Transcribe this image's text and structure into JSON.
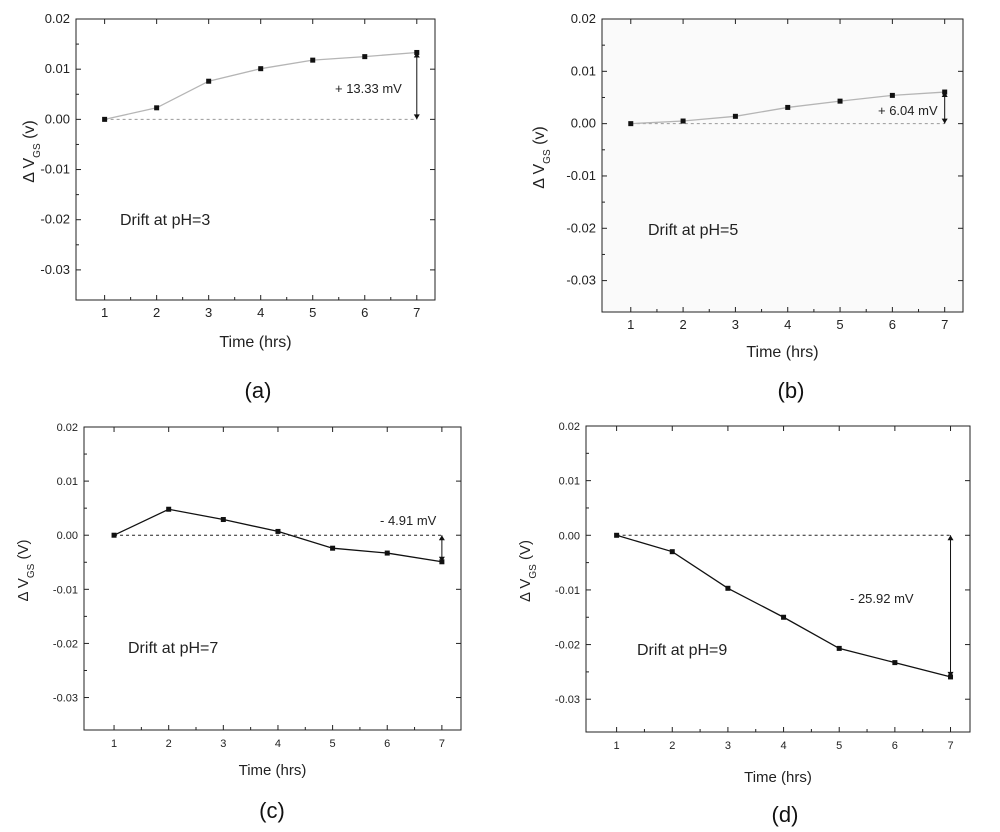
{
  "chart_data": [
    {
      "type": "line",
      "panel_label": "(a)",
      "title": "",
      "xlabel": "Time (hrs)",
      "ylabel_prefix": "Δ V",
      "ylabel_sub": "GS",
      "ylabel_suffix": " (v)",
      "x": [
        1,
        2,
        3,
        4,
        5,
        6,
        7
      ],
      "xticks": [
        "1",
        "2",
        "3",
        "4",
        "5",
        "6",
        "7"
      ],
      "xlim": [
        0.45,
        7.35
      ],
      "ylim": [
        -0.036,
        0.02
      ],
      "yticks": [
        "0.02",
        "0.01",
        "0.00",
        "-0.01",
        "-0.02",
        "-0.03"
      ],
      "ytick_values": [
        0.02,
        0.01,
        0.0,
        -0.01,
        -0.02,
        -0.03
      ],
      "series": [
        {
          "name": "drift",
          "values": [
            0.0,
            0.0023,
            0.0076,
            0.0101,
            0.0118,
            0.0125,
            0.01333
          ]
        }
      ],
      "drift_text": "Drift at pH=3",
      "delta_text": "+ 13.33 mV",
      "line_color": "#b5b5b5",
      "baseline_color": "#9a9a9a"
    },
    {
      "type": "line",
      "panel_label": "(b)",
      "title": "",
      "xlabel": "Time (hrs)",
      "ylabel_prefix": "Δ V",
      "ylabel_sub": "GS",
      "ylabel_suffix": " (v)",
      "x": [
        1,
        2,
        3,
        4,
        5,
        6,
        7
      ],
      "xticks": [
        "1",
        "2",
        "3",
        "4",
        "5",
        "6",
        "7"
      ],
      "xlim": [
        0.45,
        7.35
      ],
      "ylim": [
        -0.036,
        0.02
      ],
      "yticks": [
        "0.02",
        "0.01",
        "0.00",
        "-0.01",
        "-0.02",
        "-0.03"
      ],
      "ytick_values": [
        0.02,
        0.01,
        0.0,
        -0.01,
        -0.02,
        -0.03
      ],
      "series": [
        {
          "name": "drift",
          "values": [
            0.0,
            0.0005,
            0.0014,
            0.0031,
            0.0043,
            0.0054,
            0.00604
          ]
        }
      ],
      "drift_text": "Drift at pH=5",
      "delta_text": "+ 6.04 mV",
      "line_color": "#b5b5b5",
      "baseline_color": "#9a9a9a"
    },
    {
      "type": "line",
      "panel_label": "(c)",
      "title": "",
      "xlabel": "Time (hrs)",
      "ylabel_prefix": "Δ V",
      "ylabel_sub": "GS",
      "ylabel_suffix": " (V)",
      "x": [
        1,
        2,
        3,
        4,
        5,
        6,
        7
      ],
      "xticks": [
        "1",
        "2",
        "3",
        "4",
        "5",
        "6",
        "7"
      ],
      "xlim": [
        0.45,
        7.35
      ],
      "ylim": [
        -0.036,
        0.02
      ],
      "yticks": [
        "0.02",
        "0.01",
        "0.00",
        "-0.01",
        "-0.02",
        "-0.03"
      ],
      "ytick_values": [
        0.02,
        0.01,
        0.0,
        -0.01,
        -0.02,
        -0.03
      ],
      "series": [
        {
          "name": "drift",
          "values": [
            0.0,
            0.0048,
            0.0029,
            0.0007,
            -0.0024,
            -0.0033,
            -0.00491
          ]
        }
      ],
      "drift_text": "Drift at pH=7",
      "delta_text": "- 4.91 mV",
      "line_color": "#111111",
      "baseline_color": "#222222"
    },
    {
      "type": "line",
      "panel_label": "(d)",
      "title": "",
      "xlabel": "Time (hrs)",
      "ylabel_prefix": "Δ V",
      "ylabel_sub": "GS",
      "ylabel_suffix": " (V)",
      "x": [
        1,
        2,
        3,
        4,
        5,
        6,
        7
      ],
      "xticks": [
        "1",
        "2",
        "3",
        "4",
        "5",
        "6",
        "7"
      ],
      "xlim": [
        0.45,
        7.35
      ],
      "ylim": [
        -0.036,
        0.02
      ],
      "yticks": [
        "0.02",
        "0.01",
        "0.00",
        "-0.01",
        "-0.02",
        "-0.03"
      ],
      "ytick_values": [
        0.02,
        0.01,
        0.0,
        -0.01,
        -0.02,
        -0.03
      ],
      "series": [
        {
          "name": "drift",
          "values": [
            0.0,
            -0.003,
            -0.0097,
            -0.015,
            -0.0207,
            -0.0233,
            -0.02592
          ]
        }
      ],
      "drift_text": "Drift at pH=9",
      "delta_text": "- 25.92 mV",
      "line_color": "#111111",
      "baseline_color": "#222222"
    }
  ]
}
